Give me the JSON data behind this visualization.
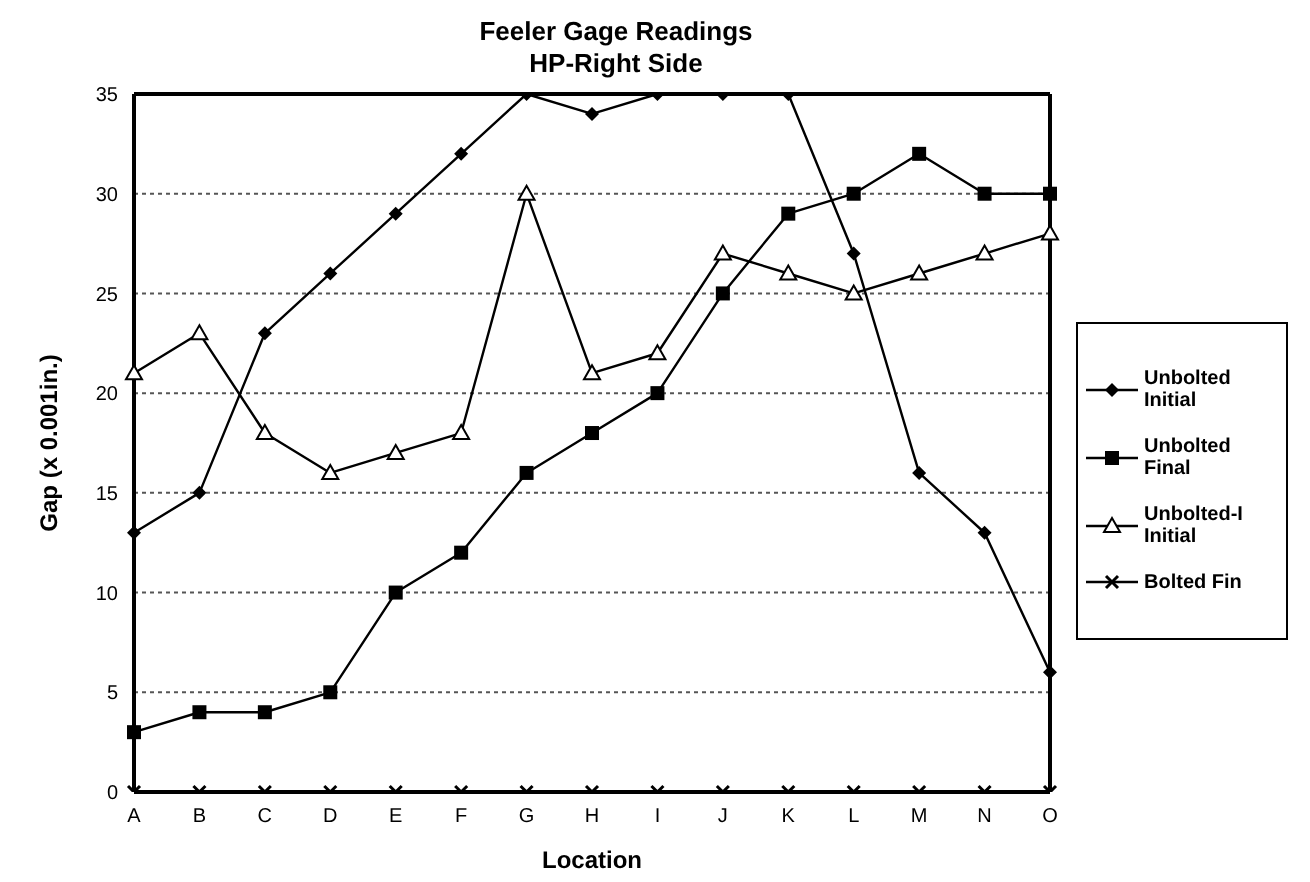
{
  "chart_data": {
    "type": "line",
    "title": "Feeler Gage Readings",
    "subtitle": "HP-Right Side",
    "xlabel": "Location",
    "ylabel": "Gap (x 0.001in.)",
    "categories": [
      "A",
      "B",
      "C",
      "D",
      "E",
      "F",
      "G",
      "H",
      "I",
      "J",
      "K",
      "L",
      "M",
      "N",
      "O"
    ],
    "series": [
      {
        "name": "Unbolted Initial",
        "color": "#000000",
        "marker": "diamond",
        "values": [
          13,
          15,
          23,
          26,
          29,
          32,
          35,
          34,
          35,
          35,
          35,
          27,
          16,
          13,
          6
        ]
      },
      {
        "name": "Unbolted Final",
        "color": "#000000",
        "marker": "square",
        "values": [
          3,
          4,
          4,
          5,
          10,
          12,
          16,
          18,
          20,
          25,
          29,
          30,
          32,
          30,
          30
        ]
      },
      {
        "name": "Unbolted-I Initial",
        "color": "#000000",
        "marker": "triangle",
        "values": [
          21,
          23,
          18,
          16,
          17,
          18,
          30,
          21,
          22,
          27,
          26,
          25,
          26,
          27,
          28
        ]
      },
      {
        "name": "Bolted Fin",
        "color": "#000000",
        "marker": "cross",
        "values": [
          0,
          0,
          0,
          0,
          0,
          0,
          0,
          0,
          0,
          0,
          0,
          0,
          0,
          0,
          0
        ]
      }
    ],
    "ylim": [
      0,
      35
    ],
    "yticks": [
      0,
      5,
      10,
      15,
      20,
      25,
      30,
      35
    ],
    "grid": "y",
    "legend": "right",
    "line_style": "solid"
  }
}
